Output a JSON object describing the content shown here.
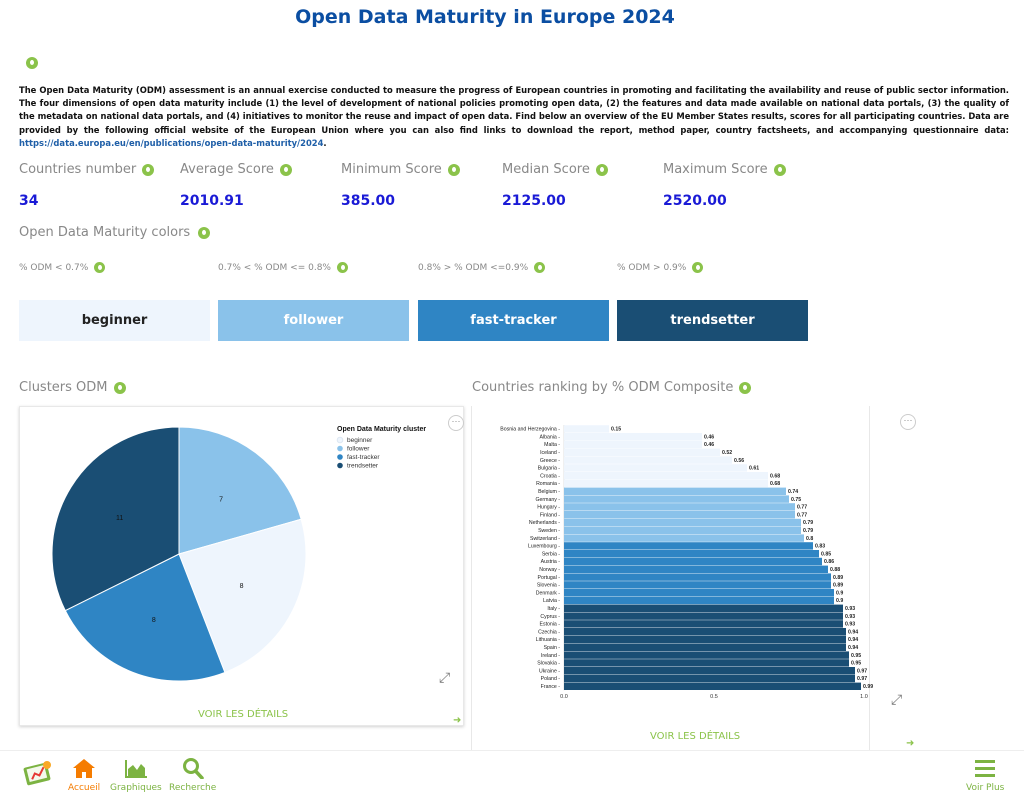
{
  "page": {
    "title": "Open Data Maturity in Europe 2024",
    "description": "The Open Data Maturity (ODM) assessment is an annual exercise conducted to measure the progress of European countries in promoting and facilitating the availability and reuse of public sector information. The four dimensions of open data maturity include (1) the level of development of national policies promoting open data, (2) the features and data made available on national data portals, (3) the quality of the metadata on national data portals, and (4) initiatives to monitor the reuse and impact of open data. Find below an overview of the EU Member States results, scores for all participating countries. Data are provided by the following official website of the European Union where you can also find links to download the report, method paper, country factsheets, and accompanying questionnaire data:",
    "link": "https://data.europa.eu/en/publications/open-data-maturity/2024",
    "link_suffix": "."
  },
  "stats": [
    {
      "label": "Countries number",
      "value": "34"
    },
    {
      "label": "Average Score",
      "value": "2010.91"
    },
    {
      "label": "Minimum Score",
      "value": "385.00"
    },
    {
      "label": "Median Score",
      "value": "2125.00"
    },
    {
      "label": "Maximum Score",
      "value": "2520.00"
    }
  ],
  "colors_title": "Open Data Maturity colors",
  "ranges": [
    "% ODM < 0.7%",
    "0.7% < % ODM <= 0.8%",
    "0.8% > % ODM <=0.9%",
    "% ODM > 0.9%"
  ],
  "categories": [
    {
      "label": "beginner",
      "bg": "#eef5fd",
      "fg": "#222222"
    },
    {
      "label": "follower",
      "bg": "#8ac2ea",
      "fg": "#ffffff"
    },
    {
      "label": "fast-tracker",
      "bg": "#2f85c4",
      "fg": "#ffffff"
    },
    {
      "label": "trendsetter",
      "bg": "#1a4e74",
      "fg": "#ffffff"
    }
  ],
  "sections": {
    "clusters_title": "Clusters ODM",
    "ranking_title": "Countries ranking by % ODM Composite",
    "details_label": "VOIR LES DÉTAILS",
    "more_label": "···"
  },
  "chart_data": [
    {
      "type": "pie",
      "legend_title": "Open Data Maturity cluster",
      "legend_position": "top-right",
      "labels": [
        "beginner",
        "follower",
        "fast-tracker",
        "trendsetter"
      ],
      "values": [
        8,
        7,
        8,
        11
      ],
      "colors": [
        "#eef5fd",
        "#8ac2ea",
        "#2f85c4",
        "#1a4e74"
      ]
    },
    {
      "type": "bar",
      "orientation": "horizontal",
      "xlim": [
        0,
        1
      ],
      "xticks": [
        "0.0",
        "0.5",
        "1.0"
      ],
      "grid": false,
      "categories": [
        "Bosnia and Herzegovina",
        "Albania",
        "Malta",
        "Iceland",
        "Greece",
        "Bulgaria",
        "Croatia",
        "Romania",
        "Belgium",
        "Germany",
        "Hungary",
        "Finland",
        "Netherlands",
        "Sweden",
        "Switzerland",
        "Luxembourg",
        "Serbia",
        "Austria",
        "Norway",
        "Portugal",
        "Slovenia",
        "Denmark",
        "Latvia",
        "Italy",
        "Cyprus",
        "Estonia",
        "Czechia",
        "Lithuania",
        "Spain",
        "Ireland",
        "Slovakia",
        "Ukraine",
        "Poland",
        "France"
      ],
      "values": [
        0.15,
        0.46,
        0.46,
        0.52,
        0.56,
        0.61,
        0.68,
        0.68,
        0.74,
        0.75,
        0.77,
        0.77,
        0.79,
        0.79,
        0.8,
        0.83,
        0.85,
        0.86,
        0.88,
        0.89,
        0.89,
        0.9,
        0.9,
        0.93,
        0.93,
        0.93,
        0.94,
        0.94,
        0.94,
        0.95,
        0.95,
        0.97,
        0.97,
        0.99
      ],
      "clusters": [
        "beginner",
        "beginner",
        "beginner",
        "beginner",
        "beginner",
        "beginner",
        "beginner",
        "beginner",
        "follower",
        "follower",
        "follower",
        "follower",
        "follower",
        "follower",
        "follower",
        "fast-tracker",
        "fast-tracker",
        "fast-tracker",
        "fast-tracker",
        "fast-tracker",
        "fast-tracker",
        "fast-tracker",
        "fast-tracker",
        "trendsetter",
        "trendsetter",
        "trendsetter",
        "trendsetter",
        "trendsetter",
        "trendsetter",
        "trendsetter",
        "trendsetter",
        "trendsetter",
        "trendsetter",
        "trendsetter"
      ]
    }
  ],
  "nav": {
    "home": "Accueil",
    "charts": "Graphiques",
    "search": "Recherche",
    "more": "Voir Plus"
  }
}
